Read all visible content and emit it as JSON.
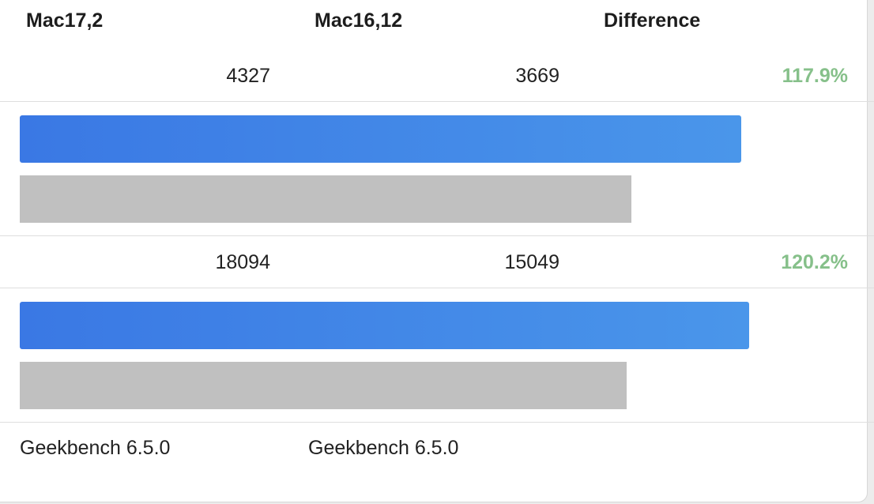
{
  "header": {
    "col1": "Mac17,2",
    "col2": "Mac16,12",
    "col3": "Difference"
  },
  "chart_data": {
    "type": "bar",
    "orientation": "horizontal",
    "series": [
      {
        "name": "Mac17,2",
        "values": [
          4327,
          18094
        ]
      },
      {
        "name": "Mac16,12",
        "values": [
          3669,
          15049
        ]
      }
    ],
    "rows": [
      {
        "a": "4327",
        "b": "3669",
        "diff": "117.9%"
      },
      {
        "a": "18094",
        "b": "15049",
        "diff": "120.2%"
      }
    ]
  },
  "footer": {
    "version_a": "Geekbench 6.5.0",
    "version_b": "Geekbench 6.5.0"
  },
  "colors": {
    "diff_positive": "#86c08a",
    "primary_bar_start": "#3a78e4",
    "primary_bar_end": "#4a96ea",
    "secondary_bar": "#c0c0c0"
  }
}
